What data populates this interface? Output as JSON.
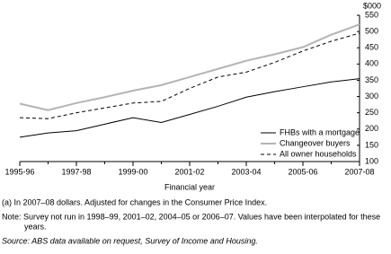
{
  "chart_data": {
    "type": "line",
    "y_unit": "$000",
    "x_label": "Financial year",
    "categories": [
      "1995-96",
      null,
      "1997-98",
      null,
      "1999-00",
      null,
      "2001-02",
      null,
      "2003-04",
      null,
      "2005-06",
      null,
      "2007-08"
    ],
    "series": [
      {
        "name": "FHBs with a mortgage",
        "color": "#000000",
        "dash": false,
        "width": 1,
        "values": [
          175,
          188,
          195,
          215,
          235,
          220,
          245,
          270,
          298,
          315,
          330,
          345,
          355
        ]
      },
      {
        "name": "Changeover buyers",
        "color": "#b4b4b4",
        "dash": false,
        "width": 2,
        "values": [
          278,
          258,
          280,
          298,
          318,
          335,
          360,
          385,
          410,
          430,
          452,
          490,
          522
        ]
      },
      {
        "name": "All owner households",
        "color": "#000000",
        "dash": true,
        "width": 1,
        "values": [
          235,
          232,
          250,
          265,
          280,
          285,
          325,
          360,
          375,
          405,
          440,
          470,
          495
        ]
      }
    ],
    "ylim": [
      100,
      550
    ],
    "yticks": [
      100,
      150,
      200,
      250,
      300,
      350,
      400,
      450,
      500,
      550
    ],
    "legend": "lower right",
    "notes": [
      "(a) In 2007–08 dollars. Adjusted for changes in the Consumer Price Index.",
      "Note: Survey not run in 1998–99, 2001–02, 2004–05 or 2006–07. Values have been interpolated for these",
      "years.",
      "Source: ABS data available on request, Survey of Income and Housing."
    ]
  }
}
